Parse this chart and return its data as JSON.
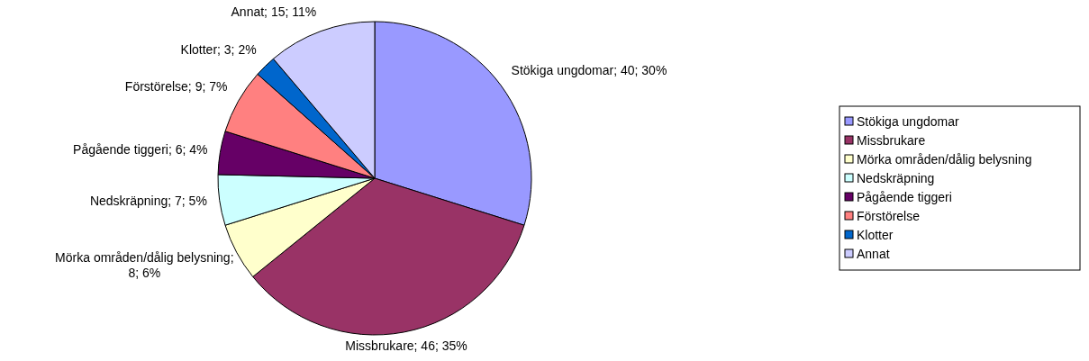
{
  "chart_data": {
    "type": "pie",
    "categories": [
      "Stökiga ungdomar",
      "Missbrukare",
      "Mörka områden/dålig belysning",
      "Nedskräpning",
      "Pågående tiggeri",
      "Förstörelse",
      "Klotter",
      "Annat"
    ],
    "values": [
      40,
      46,
      8,
      7,
      6,
      9,
      3,
      15
    ],
    "value_labels": [
      "Stökiga ungdomar; 40; 30%",
      "Missbrukare; 46; 35%",
      "Mörka områden/dålig belysning; 8; 6%",
      "Nedskräpning; 7; 5%",
      "Pågående tiggeri; 6; 4%",
      "Förstörelse; 9; 7%",
      "Klotter; 3; 2%",
      "Annat; 15; 11%"
    ],
    "colors": [
      "#9999ff",
      "#993366",
      "#ffffcc",
      "#ccffff",
      "#660066",
      "#ff8080",
      "#0066cc",
      "#ccccff"
    ],
    "legend": "right"
  }
}
